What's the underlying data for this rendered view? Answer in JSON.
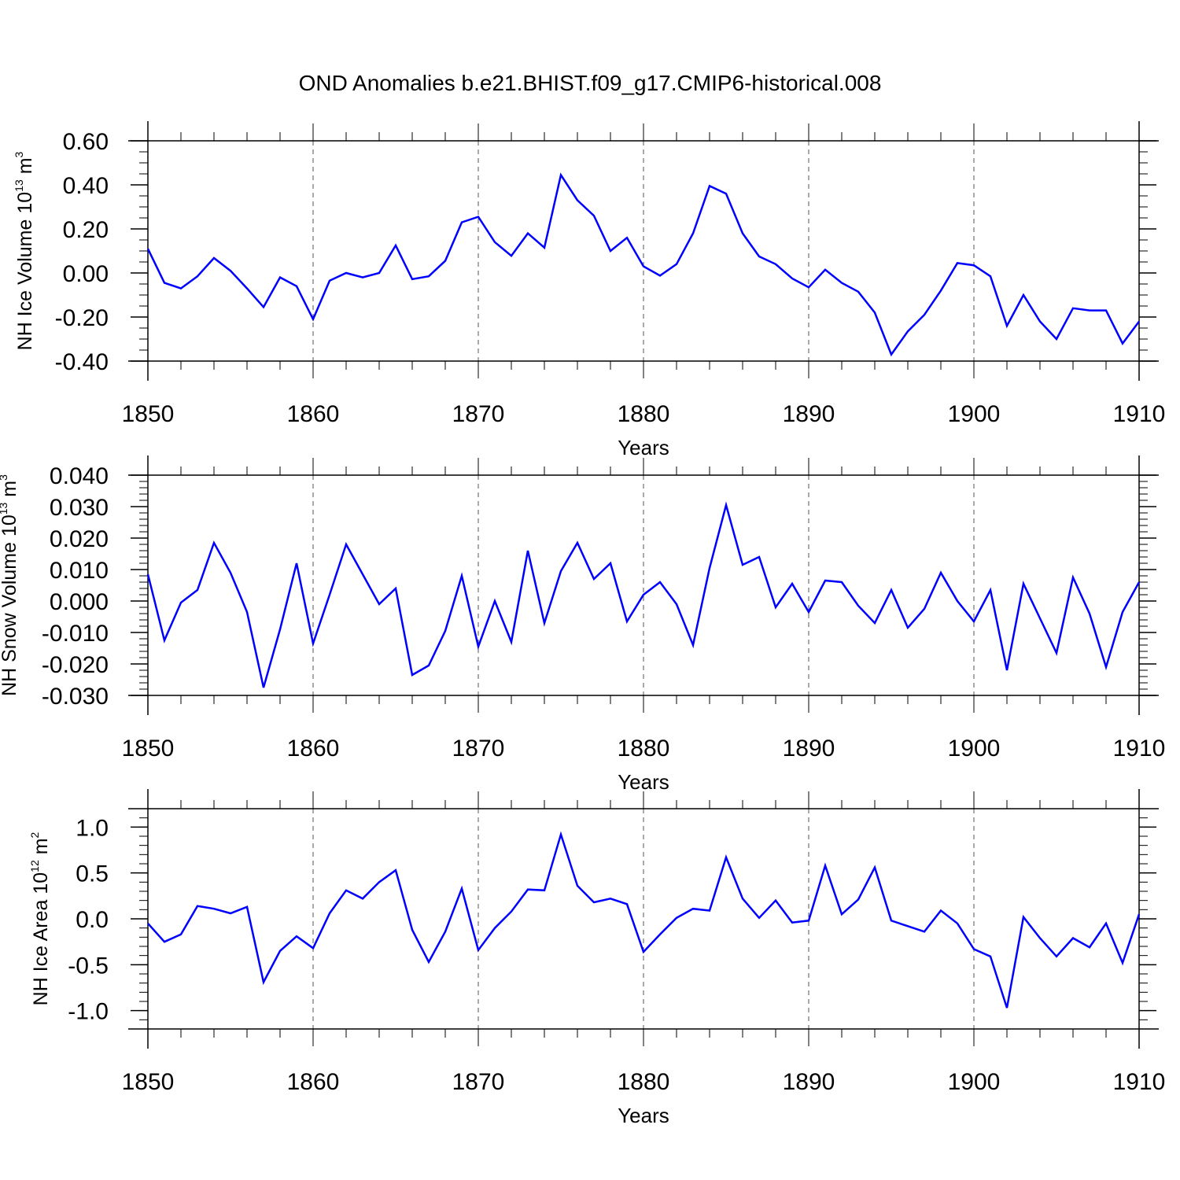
{
  "title": "OND Anomalies b.e21.BHIST.f09_g17.CMIP6-historical.008",
  "colors": {
    "line": "#0000ff",
    "axis": "#000000",
    "grid": "#555555"
  },
  "chart_data": [
    {
      "type": "line",
      "ylabel": {
        "main": "NH Ice Volume 10",
        "sup": "13",
        "unit": " m",
        "unit_sup": "3"
      },
      "xlabel": "Years",
      "xlim": [
        1850,
        1910
      ],
      "ylim": [
        -0.4,
        0.6
      ],
      "yticks": [
        -0.4,
        -0.2,
        0.0,
        0.2,
        0.4,
        0.6
      ],
      "ytick_labels": [
        "-0.40",
        "-0.20",
        "0.00",
        "0.20",
        "0.40",
        "0.60"
      ],
      "xticks": [
        1850,
        1860,
        1870,
        1880,
        1890,
        1900,
        1910
      ],
      "xtick_labels": [
        "1850",
        "1860",
        "1870",
        "1880",
        "1890",
        "1900",
        "1910"
      ],
      "grid": "vertical dashed at major x ticks",
      "x_start": 1850,
      "values": [
        0.11,
        -0.045,
        -0.07,
        -0.015,
        0.068,
        0.01,
        -0.07,
        -0.155,
        -0.02,
        -0.06,
        -0.21,
        -0.035,
        0.0,
        -0.02,
        0.0,
        0.125,
        -0.028,
        -0.015,
        0.055,
        0.23,
        0.255,
        0.14,
        0.078,
        0.18,
        0.115,
        0.445,
        0.33,
        0.26,
        0.1,
        0.16,
        0.03,
        -0.012,
        0.04,
        0.18,
        0.395,
        0.36,
        0.18,
        0.075,
        0.04,
        -0.025,
        -0.065,
        0.015,
        -0.045,
        -0.085,
        -0.18,
        -0.37,
        -0.265,
        -0.19,
        -0.08,
        0.045,
        0.035,
        -0.015,
        -0.24,
        -0.1,
        -0.22,
        -0.3,
        -0.16,
        -0.17,
        -0.17,
        -0.32,
        -0.22
      ]
    },
    {
      "type": "line",
      "ylabel": {
        "main": "NH Snow Volume 10",
        "sup": "13",
        "unit": " m",
        "unit_sup": "3"
      },
      "xlabel": "Years",
      "xlim": [
        1850,
        1910
      ],
      "ylim": [
        -0.03,
        0.04
      ],
      "yticks": [
        -0.03,
        -0.02,
        -0.01,
        0.0,
        0.01,
        0.02,
        0.03,
        0.04
      ],
      "ytick_labels": [
        "-0.030",
        "-0.020",
        "-0.010",
        "0.000",
        "0.010",
        "0.020",
        "0.030",
        "0.040"
      ],
      "xticks": [
        1850,
        1860,
        1870,
        1880,
        1890,
        1900,
        1910
      ],
      "xtick_labels": [
        "1850",
        "1860",
        "1870",
        "1880",
        "1890",
        "1900",
        "1910"
      ],
      "grid": "vertical dashed at major x ticks",
      "x_start": 1850,
      "values": [
        0.0085,
        -0.0125,
        -0.0005,
        0.0035,
        0.0185,
        0.009,
        -0.0035,
        -0.0275,
        -0.009,
        0.012,
        -0.0135,
        0.002,
        0.018,
        0.0085,
        -0.001,
        0.004,
        -0.0235,
        -0.0205,
        -0.0095,
        0.008,
        -0.0145,
        0.0,
        -0.013,
        0.016,
        -0.007,
        0.0095,
        0.0185,
        0.007,
        0.012,
        -0.0065,
        0.002,
        0.006,
        -0.001,
        -0.014,
        0.0105,
        0.0305,
        0.0115,
        0.014,
        -0.002,
        0.0055,
        -0.0035,
        0.0065,
        0.006,
        -0.0015,
        -0.007,
        0.0035,
        -0.0085,
        -0.0025,
        0.009,
        0.0,
        -0.0065,
        0.0035,
        -0.022,
        0.0055,
        -0.0055,
        -0.0165,
        0.0075,
        -0.004,
        -0.021,
        -0.0035,
        0.006
      ]
    },
    {
      "type": "line",
      "ylabel": {
        "main": "NH Ice Area 10",
        "sup": "12",
        "unit": " m",
        "unit_sup": "2"
      },
      "xlabel": "Years",
      "xlim": [
        1850,
        1910
      ],
      "ylim": [
        -1.2,
        1.2
      ],
      "yticks": [
        -1.0,
        -0.5,
        0.0,
        0.5,
        1.0
      ],
      "ytick_labels": [
        "-1.0",
        "-0.5",
        "0.0",
        "0.5",
        "1.0"
      ],
      "xticks": [
        1850,
        1860,
        1870,
        1880,
        1890,
        1900,
        1910
      ],
      "xtick_labels": [
        "1850",
        "1860",
        "1870",
        "1880",
        "1890",
        "1900",
        "1910"
      ],
      "grid": "vertical dashed at major x ticks",
      "x_start": 1850,
      "values": [
        -0.05,
        -0.25,
        -0.17,
        0.14,
        0.11,
        0.06,
        0.13,
        -0.69,
        -0.35,
        -0.19,
        -0.32,
        0.06,
        0.31,
        0.22,
        0.4,
        0.53,
        -0.12,
        -0.47,
        -0.14,
        0.33,
        -0.34,
        -0.1,
        0.08,
        0.32,
        0.31,
        0.92,
        0.36,
        0.18,
        0.22,
        0.16,
        -0.36,
        -0.17,
        0.01,
        0.11,
        0.09,
        0.67,
        0.22,
        0.01,
        0.2,
        -0.04,
        -0.02,
        0.58,
        0.05,
        0.21,
        0.56,
        -0.02,
        -0.08,
        -0.14,
        0.09,
        -0.05,
        -0.33,
        -0.41,
        -0.97,
        0.02,
        -0.21,
        -0.41,
        -0.21,
        -0.31,
        -0.05,
        -0.48,
        0.05
      ]
    }
  ]
}
